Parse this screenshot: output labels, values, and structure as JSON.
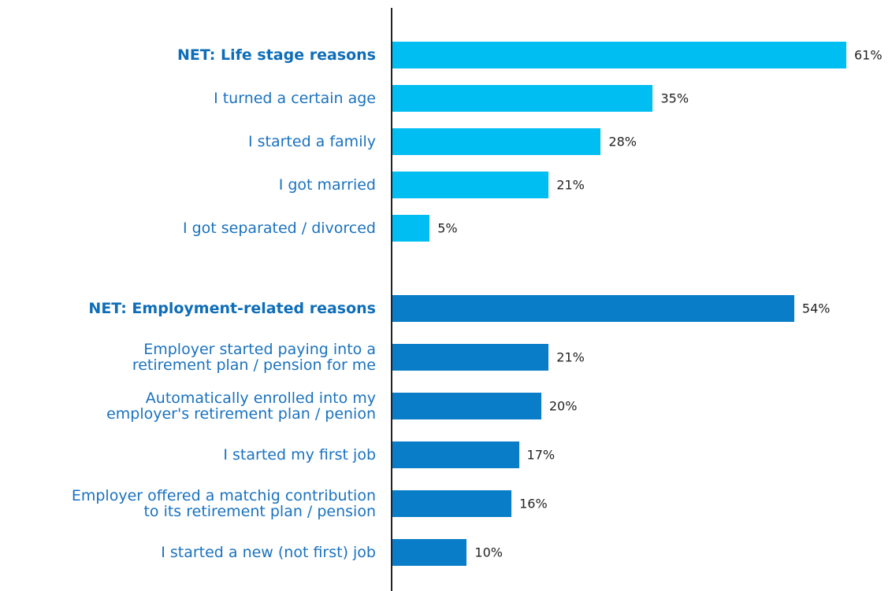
{
  "chart_data": {
    "type": "bar",
    "groups": [
      {
        "color": "#00bdf2",
        "categories": [
          "NET: Life stage reasons",
          "I turned a certain age",
          "I started a family",
          "I got married",
          "I got separated / divorced"
        ],
        "values": [
          61,
          35,
          28,
          21,
          5
        ],
        "value_labels": [
          "61%",
          "35%",
          "28%",
          "21%",
          "5%"
        ]
      },
      {
        "color": "#0a7dc9",
        "categories": [
          "NET: Employment-related reasons",
          "Employer started paying into a\nretirement plan / pension for me",
          "Automatically enrolled into my\nemployer's retirement plan / penion",
          "I started my first job",
          "Employer offered a matchig contribution\nto its retirement plan / pension",
          "I started a new (not first) job"
        ],
        "values": [
          54,
          21,
          20,
          17,
          16,
          10
        ],
        "value_labels": [
          "54%",
          "21%",
          "20%",
          "17%",
          "16%",
          "10%"
        ]
      }
    ]
  }
}
